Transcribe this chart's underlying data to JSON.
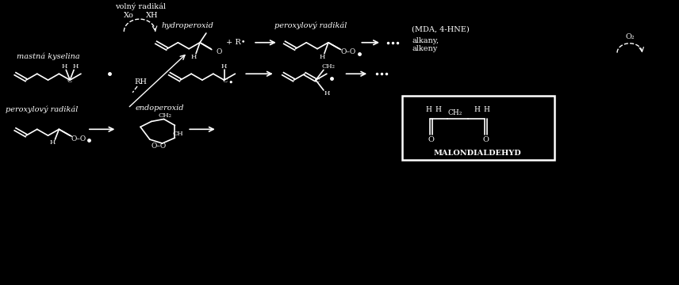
{
  "bg_color": "#000000",
  "fg_color": "#ffffff",
  "labels": {
    "masna_kyselina": "mastná kyselina",
    "volny_radikal": "volný radikál",
    "Xo": "Xo",
    "XH": "XH",
    "peroxylovy_radikal1": "peroxylový radikál",
    "endoperoxid": "endoperoxid",
    "MALONDIALDEHYD": "MALONDIALDEHYD",
    "hydroperoxid": "hydroperoxid",
    "peroxylovy_radikal2": "peroxylový radikál",
    "alkany_alkeny": "alkany,\nalkeny",
    "MDA_HNE": "(MDA, 4-HNE)",
    "O2": "O₂",
    "RH": "RH"
  }
}
